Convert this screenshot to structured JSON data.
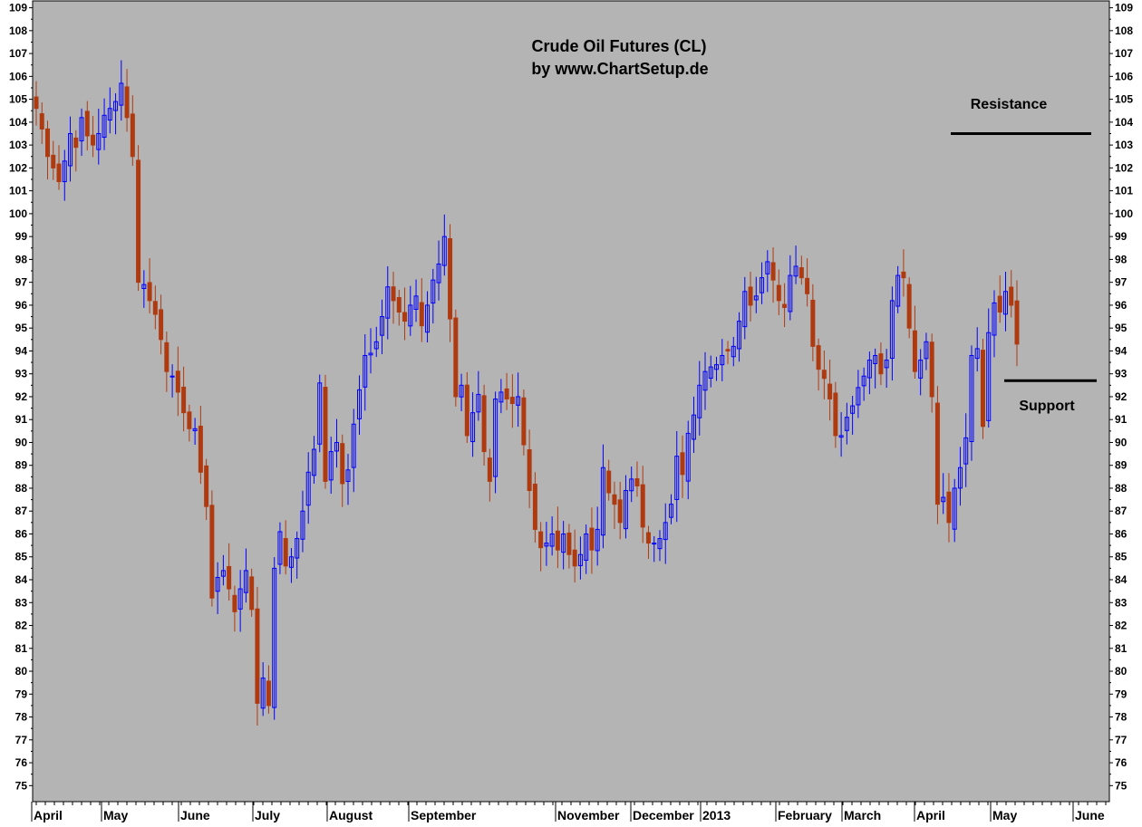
{
  "colors": {
    "background": "#b4b4b4",
    "frame": "#ffffff",
    "up": "#0000ff",
    "down": "#b03a10",
    "annotation": "#000000"
  },
  "chart_data": {
    "type": "candlestick",
    "title": "Crude Oil Futures (CL)",
    "subtitle": "by www.ChartSetup.de",
    "xlabel": "",
    "ylabel": "",
    "ylim": [
      74.3,
      109.3
    ],
    "grid": false,
    "y_ticks": [
      75,
      76,
      77,
      78,
      79,
      80,
      81,
      82,
      83,
      84,
      85,
      86,
      87,
      88,
      89,
      90,
      91,
      92,
      93,
      94,
      95,
      96,
      97,
      98,
      99,
      100,
      101,
      102,
      103,
      104,
      105,
      106,
      107,
      108,
      109
    ],
    "x_labels": [
      "April",
      "May",
      "June",
      "July",
      "August",
      "September",
      "November",
      "December",
      "2013",
      "February",
      "March",
      "April",
      "May",
      "June"
    ],
    "closes": [
      104.6,
      103.7,
      102.5,
      102.0,
      101.4,
      102.3,
      103.5,
      102.9,
      104.2,
      103.4,
      103.0,
      103.5,
      104.3,
      104.6,
      104.9,
      105.7,
      104.2,
      102.5,
      97.0,
      96.9,
      96.2,
      95.6,
      94.5,
      93.1,
      92.9,
      92.2,
      91.3,
      90.6,
      90.6,
      88.7,
      87.2,
      83.2,
      84.1,
      84.4,
      83.6,
      82.6,
      83.6,
      84.4,
      82.7,
      78.6,
      79.7,
      78.5,
      84.5,
      86.1,
      84.6,
      85.0,
      85.8,
      87.0,
      88.7,
      89.7,
      92.6,
      88.3,
      89.6,
      90.0,
      88.2,
      88.8,
      90.8,
      92.3,
      93.8,
      93.9,
      94.4,
      95.5,
      96.8,
      96.2,
      95.7,
      95.3,
      96.0,
      96.4,
      95.1,
      96.0,
      97.1,
      97.8,
      99.0,
      95.4,
      92.0,
      92.5,
      90.3,
      91.3,
      92.1,
      89.6,
      88.3,
      91.9,
      92.2,
      91.9,
      91.7,
      92.0,
      89.9,
      87.9,
      86.2,
      85.4,
      85.6,
      86.0,
      85.3,
      86.0,
      85.1,
      84.6,
      85.1,
      86.0,
      85.3,
      86.2,
      88.9,
      87.8,
      87.3,
      86.5,
      87.9,
      88.4,
      88.1,
      86.3,
      85.6,
      85.6,
      85.8,
      86.5,
      87.3,
      89.4,
      88.6,
      90.4,
      91.2,
      92.5,
      93.1,
      93.3,
      93.4,
      93.8,
      94.0,
      94.2,
      95.3,
      96.6,
      96.0,
      96.4,
      97.2,
      97.9,
      97.1,
      96.2,
      95.9,
      97.3,
      97.7,
      97.2,
      96.5,
      94.2,
      93.2,
      92.8,
      91.9,
      90.3,
      90.3,
      91.1,
      91.6,
      92.4,
      92.9,
      93.6,
      93.8,
      93.0,
      93.6,
      96.2,
      97.3,
      97.2,
      95.0,
      93.1,
      93.6,
      94.4,
      92.0,
      87.3,
      87.6,
      86.5,
      88.0,
      88.9,
      90.2,
      93.8,
      94.1,
      90.7,
      94.8,
      96.1,
      95.7,
      96.6,
      96.0,
      94.3
    ],
    "annotations": [
      {
        "label": "Resistance",
        "y": 103.5
      },
      {
        "label": "Support",
        "y": 92.7
      }
    ]
  }
}
